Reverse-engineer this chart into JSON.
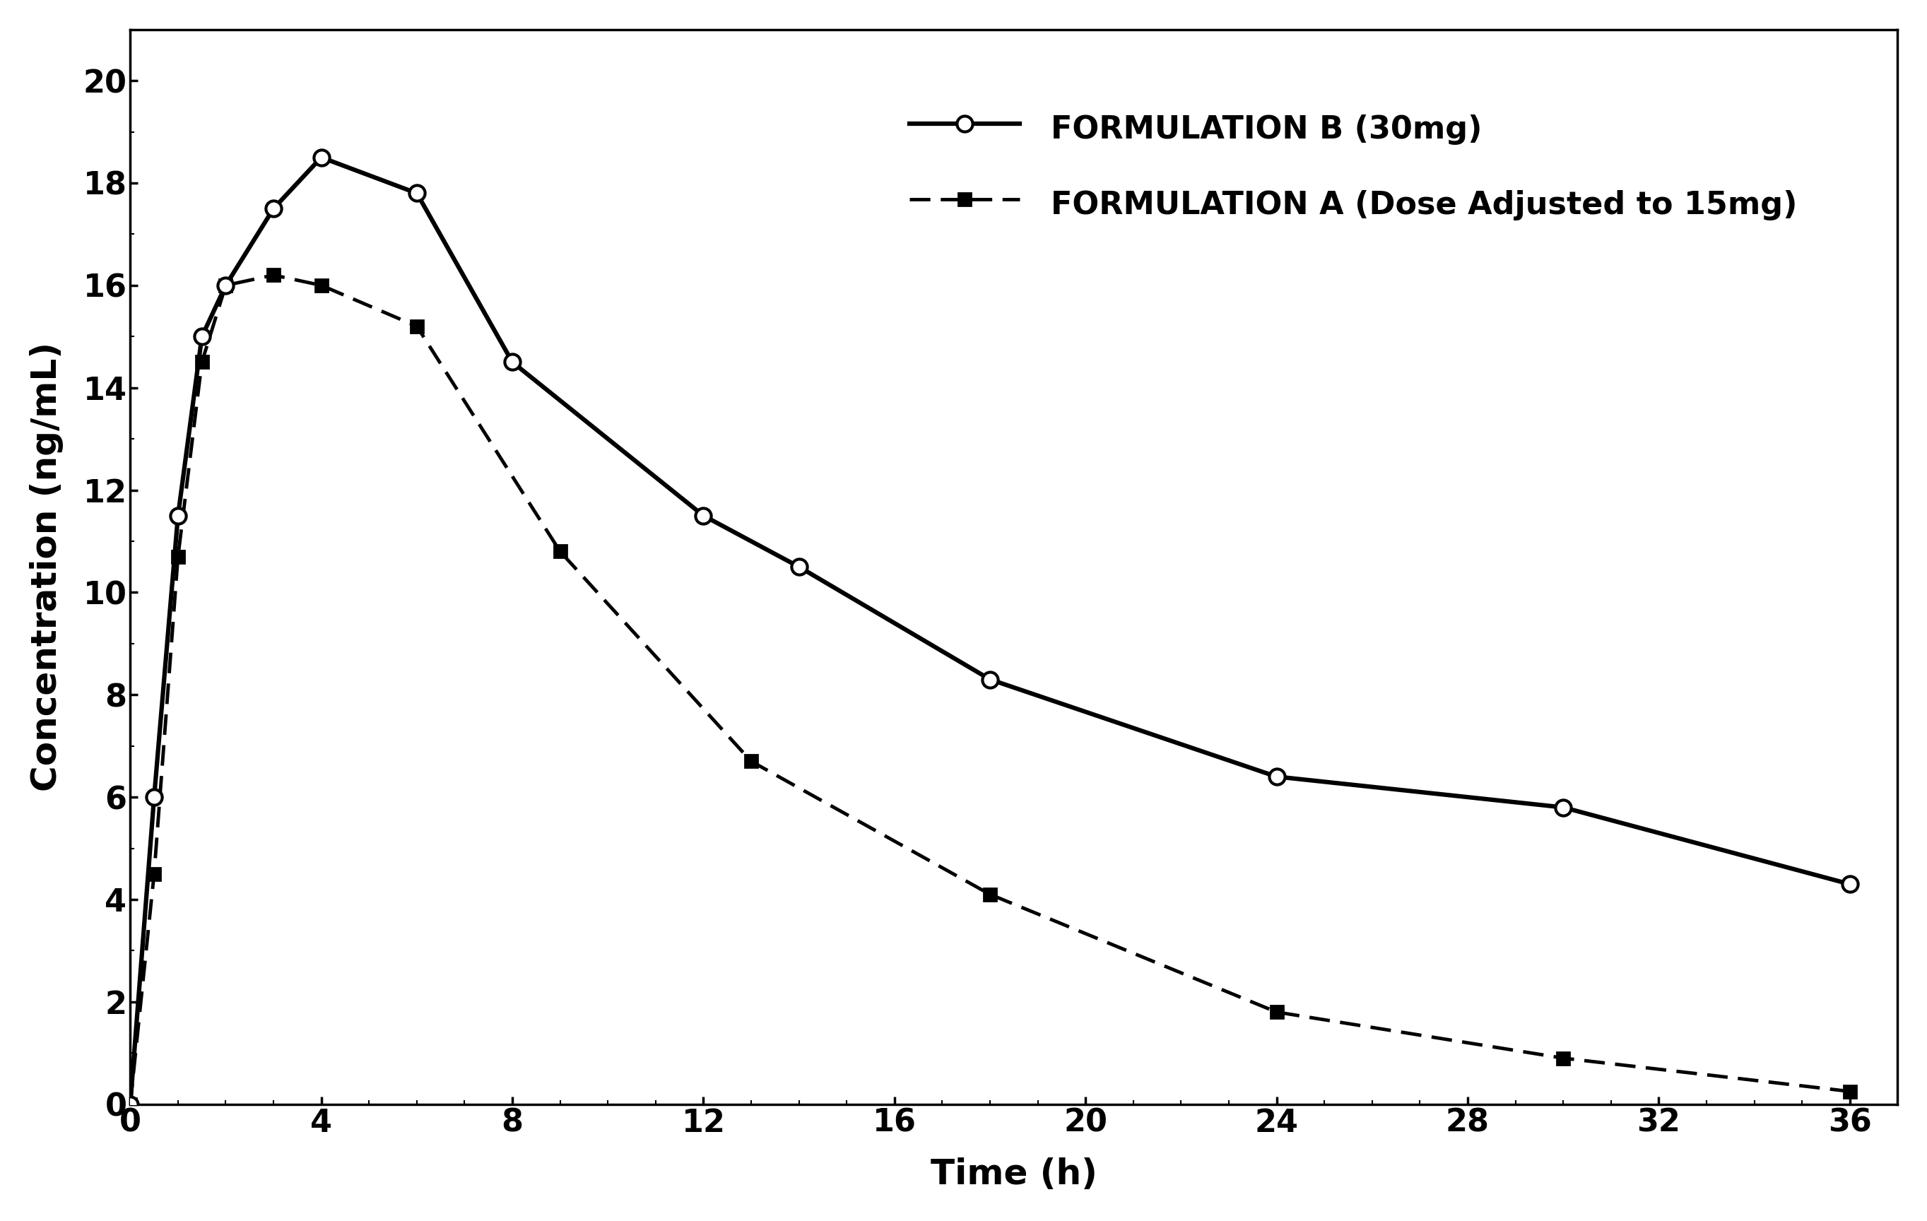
{
  "formB_x": [
    0,
    0.5,
    1,
    1.5,
    2,
    3,
    4,
    6,
    8,
    12,
    14,
    18,
    24,
    30,
    36
  ],
  "formB_y": [
    0,
    6.0,
    11.5,
    15.0,
    16.0,
    17.5,
    18.5,
    17.8,
    14.5,
    11.5,
    10.5,
    8.3,
    6.4,
    5.8,
    4.3
  ],
  "formA_x": [
    0,
    0.5,
    1,
    1.5,
    2,
    3,
    4,
    6,
    9,
    13,
    18,
    24,
    30,
    36
  ],
  "formA_y": [
    0,
    4.5,
    10.7,
    14.5,
    16.0,
    16.2,
    16.0,
    15.2,
    10.8,
    6.7,
    4.1,
    1.8,
    0.9,
    0.25
  ],
  "xlabel": "Time (h)",
  "ylabel": "Concentration (ng/mL)",
  "legend_B": "FORMULATION B (30mg)",
  "legend_A": "FORMULATION A (Dose Adjusted to 15mg)",
  "xlim": [
    0,
    37
  ],
  "ylim": [
    0,
    21
  ],
  "xticks": [
    0,
    4,
    8,
    12,
    16,
    20,
    24,
    28,
    32,
    36
  ],
  "yticks": [
    0,
    2,
    4,
    6,
    8,
    10,
    12,
    14,
    16,
    18,
    20
  ],
  "background_color": "#ffffff",
  "line_color": "#000000"
}
